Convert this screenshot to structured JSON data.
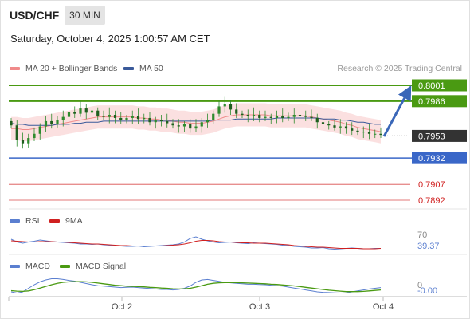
{
  "header": {
    "symbol": "USD/CHF",
    "timeframe": "30 MIN",
    "datetime": "Saturday, October 4, 2025 1:00:57 AM CET"
  },
  "legend": {
    "ma20_label": "MA 20 + Bollinger Bands",
    "ma50_label": "MA 50",
    "credit": "Research © 2025 Trading Central",
    "rsi_label": "RSI",
    "rsi_ma_label": "9MA",
    "macd_label": "MACD",
    "macd_signal_label": "MACD Signal"
  },
  "colors": {
    "resistance": "#4a9a12",
    "support": "#3a67c8",
    "current": "#333333",
    "target_red": "#d02020",
    "candle": "#2e8b2e",
    "ma20": "#f08a8a",
    "ma50": "#3a5a9a",
    "bollinger_fill": "#fadada",
    "arrow": "#3a67b8"
  },
  "chart_data": [
    {
      "type": "candlestick",
      "title": "USD/CHF 30 MIN",
      "x_tick_labels": [
        "Oct 2",
        "Oct 3",
        "Oct 4"
      ],
      "price_levels": [
        {
          "kind": "resistance",
          "value": "0.8001"
        },
        {
          "kind": "resistance",
          "value": "0.7986"
        },
        {
          "kind": "current",
          "value": "0.7953"
        },
        {
          "kind": "support",
          "value": "0.7932"
        },
        {
          "kind": "target",
          "value": "0.7907"
        },
        {
          "kind": "target",
          "value": "0.7892"
        }
      ],
      "close_series": [
        0.7963,
        0.7949,
        0.7946,
        0.7951,
        0.7955,
        0.7962,
        0.7967,
        0.7964,
        0.7968,
        0.7971,
        0.7976,
        0.7974,
        0.7979,
        0.7975,
        0.7977,
        0.7972,
        0.7971,
        0.7973,
        0.797,
        0.7968,
        0.797,
        0.7972,
        0.7969,
        0.797,
        0.7966,
        0.7968,
        0.7967,
        0.7965,
        0.7963,
        0.7962,
        0.7964,
        0.796,
        0.7962,
        0.7966,
        0.7968,
        0.7974,
        0.7981,
        0.7983,
        0.7978,
        0.7974,
        0.7973,
        0.7972,
        0.7973,
        0.797,
        0.7971,
        0.797,
        0.7972,
        0.797,
        0.7971,
        0.7973,
        0.7972,
        0.7971,
        0.797,
        0.7966,
        0.7964,
        0.7963,
        0.7961,
        0.7962,
        0.796,
        0.7958,
        0.7957,
        0.7957,
        0.7955,
        0.7955,
        0.7954
      ],
      "ma20_series": [
        0.796,
        0.796,
        0.7959,
        0.7959,
        0.796,
        0.7961,
        0.7962,
        0.7963,
        0.7964,
        0.7965,
        0.7966,
        0.7967,
        0.7968,
        0.7969,
        0.797,
        0.7971,
        0.7971,
        0.7971,
        0.7971,
        0.7971,
        0.7971,
        0.7971,
        0.797,
        0.797,
        0.7969,
        0.7969,
        0.7968,
        0.7968,
        0.7967,
        0.7966,
        0.7966,
        0.7965,
        0.7965,
        0.7965,
        0.7966,
        0.7967,
        0.7969,
        0.7971,
        0.7972,
        0.7973,
        0.7973,
        0.7973,
        0.7973,
        0.7973,
        0.7973,
        0.7972,
        0.7972,
        0.7972,
        0.7972,
        0.7972,
        0.7972,
        0.7972,
        0.7971,
        0.797,
        0.7969,
        0.7968,
        0.7967,
        0.7966,
        0.7964,
        0.7963,
        0.7961,
        0.796,
        0.7959,
        0.7958,
        0.7957
      ],
      "ma50_series": [
        0.7965,
        0.7964,
        0.7964,
        0.7963,
        0.7963,
        0.7963,
        0.7963,
        0.7963,
        0.7964,
        0.7964,
        0.7964,
        0.7965,
        0.7965,
        0.7966,
        0.7966,
        0.7966,
        0.7967,
        0.7967,
        0.7967,
        0.7967,
        0.7967,
        0.7967,
        0.7967,
        0.7967,
        0.7967,
        0.7967,
        0.7967,
        0.7967,
        0.7967,
        0.7967,
        0.7967,
        0.7967,
        0.7967,
        0.7967,
        0.7967,
        0.7968,
        0.7968,
        0.7968,
        0.7968,
        0.7969,
        0.7969,
        0.7969,
        0.7969,
        0.7969,
        0.7969,
        0.7969,
        0.797,
        0.797,
        0.797,
        0.797,
        0.797,
        0.797,
        0.797,
        0.797,
        0.7969,
        0.7969,
        0.7969,
        0.7968,
        0.7968,
        0.7967,
        0.7966,
        0.7966,
        0.7965,
        0.7964,
        0.7964
      ],
      "bb_width": 0.0011
    },
    {
      "type": "line",
      "title": "RSI",
      "series_names": [
        "RSI",
        "9MA"
      ],
      "y_tick_labels": [
        "70"
      ],
      "current_value": "39.37",
      "rsi_series": [
        62,
        55,
        52,
        55,
        57,
        60,
        58,
        56,
        55,
        54,
        53,
        52,
        50,
        50,
        49,
        50,
        48,
        47,
        46,
        45,
        44,
        44,
        45,
        43,
        44,
        45,
        46,
        47,
        48,
        50,
        55,
        64,
        68,
        62,
        58,
        55,
        53,
        54,
        55,
        53,
        52,
        51,
        53,
        52,
        51,
        50,
        49,
        47,
        46,
        44,
        43,
        42,
        40,
        40,
        41,
        38,
        37,
        38,
        39,
        40,
        39,
        38,
        38,
        39,
        39
      ],
      "rsi_ma_series": [
        58,
        57,
        56,
        55,
        55,
        56,
        56,
        56,
        55,
        55,
        54,
        53,
        52,
        51,
        50,
        50,
        49,
        48,
        47,
        46,
        46,
        45,
        45,
        45,
        45,
        45,
        45,
        46,
        47,
        48,
        50,
        53,
        57,
        59,
        59,
        58,
        56,
        55,
        55,
        54,
        53,
        53,
        52,
        52,
        52,
        51,
        50,
        49,
        48,
        46,
        45,
        44,
        43,
        42,
        42,
        41,
        40,
        39,
        39,
        39,
        39,
        38,
        38,
        38,
        39
      ]
    },
    {
      "type": "line",
      "title": "MACD",
      "series_names": [
        "MACD",
        "MACD Signal"
      ],
      "y_tick_labels": [
        "0"
      ],
      "current_value": "-0.00",
      "macd_series": [
        -0.0003,
        -0.00035,
        -0.0003,
        -0.00015,
        0.0,
        0.00012,
        0.0002,
        0.00025,
        0.00025,
        0.00022,
        0.00018,
        0.00015,
        0.0001,
        5e-05,
        0.0,
        -4e-05,
        -6e-05,
        -8e-05,
        -0.0001,
        -0.00012,
        -0.00011,
        -0.0001,
        -0.00012,
        -0.00014,
        -0.00016,
        -0.00018,
        -0.0002,
        -0.0002,
        -0.00022,
        -0.0002,
        -0.00015,
        -5e-05,
        0.0001,
        0.0002,
        0.00022,
        0.00018,
        0.00014,
        0.0001,
        8e-05,
        6e-05,
        4e-05,
        2e-05,
        2e-05,
        1e-05,
        0.0,
        -2e-05,
        -4e-05,
        -6e-05,
        -0.0001,
        -0.00014,
        -0.00018,
        -0.00022,
        -0.00026,
        -0.0003,
        -0.00032,
        -0.00033,
        -0.00034,
        -0.00035,
        -0.00034,
        -0.0003,
        -0.00026,
        -0.00022,
        -0.00018,
        -0.00015,
        -0.00012
      ],
      "signal_series": [
        -0.00025,
        -0.00027,
        -0.00028,
        -0.00026,
        -0.00021,
        -0.00014,
        -7e-05,
        0.0,
        6e-05,
        0.0001,
        0.00012,
        0.00013,
        0.00013,
        0.00012,
        0.0001,
        7e-05,
        4e-05,
        1e-05,
        -2e-05,
        -4e-05,
        -6e-05,
        -7e-05,
        -8e-05,
        -9e-05,
        -0.00011,
        -0.00012,
        -0.00014,
        -0.00015,
        -0.00017,
        -0.00018,
        -0.00017,
        -0.00015,
        -0.0001,
        -4e-05,
        2e-05,
        6e-05,
        8e-05,
        9e-05,
        9e-05,
        9e-05,
        8e-05,
        7e-05,
        6e-05,
        5e-05,
        4e-05,
        2e-05,
        1e-05,
        -1e-05,
        -3e-05,
        -5e-05,
        -8e-05,
        -0.00011,
        -0.00014,
        -0.00017,
        -0.0002,
        -0.00023,
        -0.00025,
        -0.00027,
        -0.00029,
        -0.00029,
        -0.00029,
        -0.00028,
        -0.00026,
        -0.00024,
        -0.00022
      ]
    }
  ]
}
